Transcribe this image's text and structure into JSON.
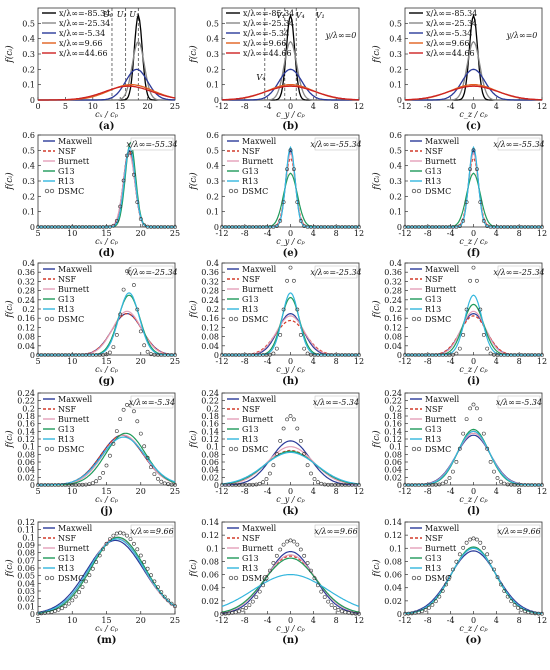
{
  "figure": {
    "models": [
      "Maxwell",
      "NSF",
      "Burnett",
      "G13",
      "R13",
      "DSMC"
    ],
    "model_colors": {
      "Maxwell": "#2b3a99",
      "NSF": "#d23a2a",
      "Burnett": "#e3a0b8",
      "G13": "#1e9a5a",
      "R13": "#33b6dd",
      "DSMC": "#333333"
    },
    "dsmc_colors": {
      "x/λ∞=-85.34": "#000000",
      "x/λ∞=-25.34": "#888888",
      "x/λ∞=-5.34": "#2b3a99",
      "x/λ∞=9.66": "#e06020",
      "x/λ∞=44.66": "#cc2222"
    },
    "panel_labels": [
      "(a)",
      "(b)",
      "(c)",
      "(d)",
      "(e)",
      "(f)",
      "(g)",
      "(h)",
      "(i)",
      "(j)",
      "(k)",
      "(l)",
      "(m)",
      "(n)",
      "(o)"
    ],
    "y_label": "f(cᵢ)",
    "x_labels": {
      "x": "cₓ / cₚ",
      "y": "c_y / cₚ",
      "z": "c_z / cₚ"
    },
    "top_annotations": {
      "b": "y/λ∞=0",
      "c": "y/λ∞=0"
    },
    "top_marks_a": [
      "U₀",
      "U₁",
      "U₁"
    ],
    "top_marks_b": [
      "V₄",
      "V₁",
      "V₄",
      "V₁"
    ]
  },
  "chart_data": [
    {
      "panel": "a",
      "type": "line",
      "xlim": [
        0,
        25
      ],
      "ylim": [
        0,
        0.6
      ],
      "xticks": [
        0,
        5,
        10,
        15,
        20,
        25
      ],
      "yticks": [
        0,
        0.1,
        0.2,
        0.3,
        0.4,
        0.5
      ],
      "legend": [
        "x/λ∞=-85.34",
        "x/λ∞=-25.34",
        "x/λ∞=-5.34",
        "x/λ∞=9.66",
        "x/λ∞=44.66"
      ],
      "legend_position": "top-left",
      "series": [
        {
          "name": "x/λ∞=-85.34",
          "color": "#000000",
          "mu": 18.3,
          "sigma": 0.72,
          "peak": 0.55
        },
        {
          "name": "x/λ∞=-25.34",
          "color": "#888888",
          "mu": 18.3,
          "sigma": 1.1,
          "peak": 0.38
        },
        {
          "name": "x/λ∞=-5.34",
          "color": "#2b3a99",
          "mu": 18.0,
          "sigma": 2.0,
          "peak": 0.2
        },
        {
          "name": "x/λ∞=9.66",
          "color": "#e06020",
          "mu": 17.0,
          "sigma": 4.0,
          "peak": 0.1
        },
        {
          "name": "x/λ∞=44.66",
          "color": "#cc2222",
          "mu": 16.5,
          "sigma": 4.3,
          "peak": 0.09
        }
      ],
      "vlines": [
        13.5,
        16.0,
        18.3
      ]
    },
    {
      "panel": "b",
      "type": "line",
      "xlim": [
        -12,
        12
      ],
      "ylim": [
        0,
        0.6
      ],
      "xticks": [
        -12,
        -8,
        -4,
        0,
        4,
        8,
        12
      ],
      "yticks": [
        0,
        0.1,
        0.2,
        0.3,
        0.4,
        0.5
      ],
      "legend": [
        "x/λ∞=-85.34",
        "x/λ∞=-25.34",
        "x/λ∞=-5.34",
        "x/λ∞=9.66",
        "x/λ∞=44.66"
      ],
      "legend_position": "top-left",
      "series": [
        {
          "name": "x/λ∞=-85.34",
          "color": "#000000",
          "mu": 0,
          "sigma": 0.72,
          "peak": 0.55
        },
        {
          "name": "x/λ∞=-25.34",
          "color": "#888888",
          "mu": 0,
          "sigma": 1.1,
          "peak": 0.38
        },
        {
          "name": "x/λ∞=-5.34",
          "color": "#2b3a99",
          "mu": 0,
          "sigma": 2.0,
          "peak": 0.2
        },
        {
          "name": "x/λ∞=9.66",
          "color": "#e06020",
          "mu": 0,
          "sigma": 4.0,
          "peak": 0.1
        },
        {
          "name": "x/λ∞=44.66",
          "color": "#cc2222",
          "mu": 0,
          "sigma": 4.3,
          "peak": 0.09
        }
      ],
      "vlines": [
        -4.5,
        -1.0,
        1.0,
        4.5
      ]
    },
    {
      "panel": "c",
      "type": "line",
      "xlim": [
        -12,
        12
      ],
      "ylim": [
        0,
        0.6
      ],
      "xticks": [
        -12,
        -8,
        -4,
        0,
        4,
        8,
        12
      ],
      "yticks": [
        0,
        0.1,
        0.2,
        0.3,
        0.4,
        0.5
      ],
      "legend": [
        "x/λ∞=-85.34",
        "x/λ∞=-25.34",
        "x/λ∞=-5.34",
        "x/λ∞=9.66",
        "x/λ∞=44.66"
      ],
      "legend_position": "top-left",
      "series": [
        {
          "name": "x/λ∞=-85.34",
          "color": "#000000",
          "mu": 0,
          "sigma": 0.72,
          "peak": 0.55
        },
        {
          "name": "x/λ∞=-25.34",
          "color": "#888888",
          "mu": 0,
          "sigma": 1.1,
          "peak": 0.38
        },
        {
          "name": "x/λ∞=-5.34",
          "color": "#2b3a99",
          "mu": 0,
          "sigma": 2.0,
          "peak": 0.2
        },
        {
          "name": "x/λ∞=9.66",
          "color": "#e06020",
          "mu": 0,
          "sigma": 4.0,
          "peak": 0.1
        },
        {
          "name": "x/λ∞=44.66",
          "color": "#cc2222",
          "mu": 0,
          "sigma": 4.3,
          "peak": 0.09
        }
      ],
      "vlines": []
    },
    {
      "panel": "d",
      "type": "line",
      "annotation": "x/λ∞=-55.34",
      "xlim": [
        5,
        25
      ],
      "ylim": [
        0,
        0.6
      ],
      "xticks": [
        5,
        10,
        15,
        20,
        25
      ],
      "yticks": [
        0,
        0.1,
        0.2,
        0.3,
        0.4,
        0.5,
        0.6
      ],
      "models": {
        "Maxwell": [
          18.3,
          0.82,
          0.5
        ],
        "NSF": [
          18.3,
          0.82,
          0.5
        ],
        "Burnett": [
          18.3,
          0.85,
          0.48
        ],
        "G13": [
          18.5,
          0.75,
          0.55
        ],
        "R13": [
          18.4,
          0.78,
          0.52
        ],
        "DSMC": [
          18.3,
          0.8,
          0.5
        ]
      }
    },
    {
      "panel": "e",
      "type": "line",
      "annotation": "x/λ∞=-55.34",
      "xlim": [
        -12,
        12
      ],
      "ylim": [
        0,
        0.6
      ],
      "xticks": [
        -12,
        -8,
        -4,
        0,
        4,
        8,
        12
      ],
      "yticks": [
        0,
        0.1,
        0.2,
        0.3,
        0.4,
        0.5,
        0.6
      ],
      "models": {
        "Maxwell": [
          0,
          0.82,
          0.5
        ],
        "NSF": [
          0,
          0.9,
          0.45
        ],
        "Burnett": [
          0,
          0.85,
          0.48
        ],
        "G13": [
          0,
          1.2,
          0.35
        ],
        "R13": [
          0,
          0.8,
          0.52
        ],
        "DSMC": [
          0,
          0.8,
          0.5
        ]
      }
    },
    {
      "panel": "f",
      "type": "line",
      "annotation": "x/λ∞=-55.34",
      "xlim": [
        -12,
        12
      ],
      "ylim": [
        0,
        0.6
      ],
      "xticks": [
        -12,
        -8,
        -4,
        0,
        4,
        8,
        12
      ],
      "yticks": [
        0,
        0.1,
        0.2,
        0.3,
        0.4,
        0.5,
        0.6
      ],
      "models": {
        "Maxwell": [
          0,
          0.82,
          0.5
        ],
        "NSF": [
          0,
          0.9,
          0.45
        ],
        "Burnett": [
          0,
          0.85,
          0.48
        ],
        "G13": [
          0,
          1.2,
          0.35
        ],
        "R13": [
          0,
          0.8,
          0.52
        ],
        "DSMC": [
          0,
          0.8,
          0.5
        ]
      }
    },
    {
      "panel": "g",
      "type": "line",
      "annotation": "x/λ∞=-25.34",
      "xlim": [
        5,
        25
      ],
      "ylim": [
        0,
        0.4
      ],
      "xticks": [
        5,
        10,
        15,
        20,
        25
      ],
      "yticks": [
        0,
        0.04,
        0.08,
        0.12,
        0.16,
        0.2,
        0.24,
        0.28,
        0.32,
        0.36,
        0.4
      ],
      "models": {
        "Maxwell": [
          18.0,
          2.2,
          0.18
        ],
        "NSF": [
          18.0,
          2.2,
          0.18
        ],
        "Burnett": [
          18.0,
          2.1,
          0.19
        ],
        "G13": [
          18.3,
          1.6,
          0.26
        ],
        "R13": [
          18.3,
          1.5,
          0.27
        ],
        "DSMC": [
          18.3,
          1.05,
          0.38
        ]
      }
    },
    {
      "panel": "h",
      "type": "line",
      "annotation": "x/λ∞=-25.34",
      "xlim": [
        -12,
        12
      ],
      "ylim": [
        0,
        0.4
      ],
      "xticks": [
        -12,
        -8,
        -4,
        0,
        4,
        8,
        12
      ],
      "yticks": [
        0,
        0.04,
        0.08,
        0.12,
        0.16,
        0.2,
        0.24,
        0.28,
        0.32,
        0.36,
        0.4
      ],
      "models": {
        "Maxwell": [
          0,
          2.2,
          0.18
        ],
        "NSF": [
          0,
          2.6,
          0.15
        ],
        "Burnett": [
          0,
          2.4,
          0.17
        ],
        "G13": [
          0,
          1.6,
          0.25
        ],
        "R13": [
          0,
          1.45,
          0.27
        ],
        "DSMC": [
          0,
          1.05,
          0.38
        ]
      }
    },
    {
      "panel": "i",
      "type": "line",
      "annotation": "x/λ∞=-25.34",
      "xlim": [
        -12,
        12
      ],
      "ylim": [
        0,
        0.4
      ],
      "xticks": [
        -12,
        -8,
        -4,
        0,
        4,
        8,
        12
      ],
      "yticks": [
        0,
        0.04,
        0.08,
        0.12,
        0.16,
        0.2,
        0.24,
        0.28,
        0.32,
        0.36,
        0.4
      ],
      "models": {
        "Maxwell": [
          0,
          2.2,
          0.18
        ],
        "NSF": [
          0,
          2.3,
          0.17
        ],
        "Burnett": [
          0,
          2.1,
          0.19
        ],
        "G13": [
          0,
          1.8,
          0.22
        ],
        "R13": [
          0,
          1.5,
          0.26
        ],
        "DSMC": [
          0,
          1.05,
          0.38
        ]
      }
    },
    {
      "panel": "j",
      "type": "line",
      "annotation": "x/λ∞=-5.34",
      "xlim": [
        5,
        25
      ],
      "ylim": [
        0,
        0.24
      ],
      "xticks": [
        5,
        10,
        15,
        20,
        25
      ],
      "yticks": [
        0,
        0.02,
        0.04,
        0.06,
        0.08,
        0.1,
        0.12,
        0.14,
        0.16,
        0.18,
        0.2,
        0.22,
        0.24
      ],
      "models": {
        "Maxwell": [
          17.3,
          3.1,
          0.13
        ],
        "NSF": [
          17.3,
          3.1,
          0.13
        ],
        "Burnett": [
          17.5,
          3.0,
          0.13
        ],
        "G13": [
          17.8,
          2.9,
          0.135
        ],
        "R13": [
          17.5,
          3.2,
          0.125
        ],
        "DSMC": [
          18.2,
          1.9,
          0.21
        ]
      }
    },
    {
      "panel": "k",
      "type": "line",
      "annotation": "x/λ∞=-5.34",
      "xlim": [
        -12,
        12
      ],
      "ylim": [
        0,
        0.24
      ],
      "xticks": [
        -12,
        -8,
        -4,
        0,
        4,
        8,
        12
      ],
      "yticks": [
        0,
        0.02,
        0.04,
        0.06,
        0.08,
        0.1,
        0.12,
        0.14,
        0.16,
        0.18,
        0.2,
        0.22,
        0.24
      ],
      "models": {
        "Maxwell": [
          0,
          3.4,
          0.115
        ],
        "NSF": [
          0,
          4.3,
          0.09
        ],
        "Burnett": [
          0,
          4.0,
          0.1
        ],
        "G13": [
          0,
          4.4,
          0.088
        ],
        "R13": [
          0,
          4.6,
          0.085
        ],
        "DSMC": [
          0,
          1.9,
          0.18
        ]
      }
    },
    {
      "panel": "l",
      "type": "line",
      "annotation": "x/λ∞=-5.34",
      "xlim": [
        -12,
        12
      ],
      "ylim": [
        0,
        0.24
      ],
      "xticks": [
        -12,
        -8,
        -4,
        0,
        4,
        8,
        12
      ],
      "yticks": [
        0,
        0.02,
        0.04,
        0.06,
        0.08,
        0.1,
        0.12,
        0.14,
        0.16,
        0.18,
        0.2,
        0.22,
        0.24
      ],
      "models": {
        "Maxwell": [
          0,
          3.0,
          0.13
        ],
        "NSF": [
          0,
          2.8,
          0.14
        ],
        "Burnett": [
          0,
          2.9,
          0.135
        ],
        "G13": [
          0,
          2.7,
          0.145
        ],
        "R13": [
          0,
          2.8,
          0.14
        ],
        "DSMC": [
          0,
          1.9,
          0.21
        ]
      }
    },
    {
      "panel": "m",
      "type": "line",
      "annotation": "x/λ∞=9.66",
      "xlim": [
        5,
        25
      ],
      "ylim": [
        0,
        0.12
      ],
      "xticks": [
        5,
        10,
        15,
        20,
        25
      ],
      "yticks": [
        0,
        0.01,
        0.02,
        0.03,
        0.04,
        0.05,
        0.06,
        0.07,
        0.08,
        0.09,
        0.1,
        0.11,
        0.12
      ],
      "models": {
        "Maxwell": [
          16.3,
          4.1,
          0.096
        ],
        "NSF": [
          16.5,
          3.9,
          0.1
        ],
        "Burnett": [
          16.5,
          3.9,
          0.1
        ],
        "G13": [
          16.7,
          3.9,
          0.1
        ],
        "R13": [
          16.5,
          4.0,
          0.098
        ],
        "DSMC": [
          17.0,
          3.7,
          0.106
        ]
      }
    },
    {
      "panel": "n",
      "type": "line",
      "annotation": "x/λ∞=9.66",
      "xlim": [
        -12,
        12
      ],
      "ylim": [
        0,
        0.14
      ],
      "xticks": [
        -12,
        -8,
        -4,
        0,
        4,
        8,
        12
      ],
      "yticks": [
        0,
        0.02,
        0.04,
        0.06,
        0.08,
        0.1,
        0.12,
        0.14
      ],
      "models": {
        "Maxwell": [
          0,
          4.1,
          0.095
        ],
        "NSF": [
          0,
          4.5,
          0.088
        ],
        "Burnett": [
          0,
          4.4,
          0.09
        ],
        "G13": [
          0,
          4.6,
          0.085
        ],
        "R13": [
          0,
          6.6,
          0.06
        ],
        "DSMC": [
          0,
          3.5,
          0.112
        ]
      }
    },
    {
      "panel": "o",
      "type": "line",
      "annotation": "x/λ∞=9.66",
      "xlim": [
        -12,
        12
      ],
      "ylim": [
        0,
        0.14
      ],
      "xticks": [
        -12,
        -8,
        -4,
        0,
        4,
        8,
        12
      ],
      "yticks": [
        0,
        0.02,
        0.04,
        0.06,
        0.08,
        0.1,
        0.12,
        0.14
      ],
      "models": {
        "Maxwell": [
          0,
          4.1,
          0.096
        ],
        "NSF": [
          0,
          3.9,
          0.1
        ],
        "Burnett": [
          0,
          3.9,
          0.1
        ],
        "G13": [
          0,
          3.8,
          0.102
        ],
        "R13": [
          0,
          3.9,
          0.1
        ],
        "DSMC": [
          0,
          3.5,
          0.115
        ]
      }
    }
  ]
}
